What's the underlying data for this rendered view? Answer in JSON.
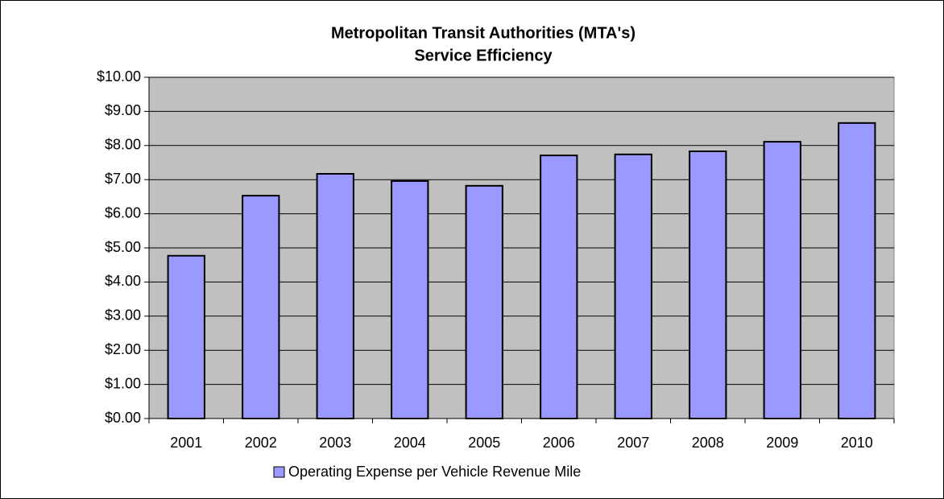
{
  "chart_data": {
    "type": "bar",
    "title": "Metropolitan Transit Authorities (MTA's)",
    "subtitle": "Service Efficiency",
    "categories": [
      "2001",
      "2002",
      "2003",
      "2004",
      "2005",
      "2006",
      "2007",
      "2008",
      "2009",
      "2010"
    ],
    "series": [
      {
        "name": "Operating Expense per Vehicle Revenue Mile",
        "color": "#9999ff",
        "values": [
          4.77,
          6.53,
          7.17,
          6.96,
          6.82,
          7.71,
          7.74,
          7.83,
          8.11,
          8.66
        ]
      }
    ],
    "ylim": [
      0,
      10
    ],
    "yticks": [
      {
        "value": 0,
        "label": "$0.00"
      },
      {
        "value": 1,
        "label": "$1.00"
      },
      {
        "value": 2,
        "label": "$2.00"
      },
      {
        "value": 3,
        "label": "$3.00"
      },
      {
        "value": 4,
        "label": "$4.00"
      },
      {
        "value": 5,
        "label": "$5.00"
      },
      {
        "value": 6,
        "label": "$6.00"
      },
      {
        "value": 7,
        "label": "$7.00"
      },
      {
        "value": 8,
        "label": "$8.00"
      },
      {
        "value": 9,
        "label": "$9.00"
      },
      {
        "value": 10,
        "label": "$10.00"
      }
    ],
    "grid": true,
    "plot_background": "#c0c0c0",
    "legend": "bottom"
  }
}
